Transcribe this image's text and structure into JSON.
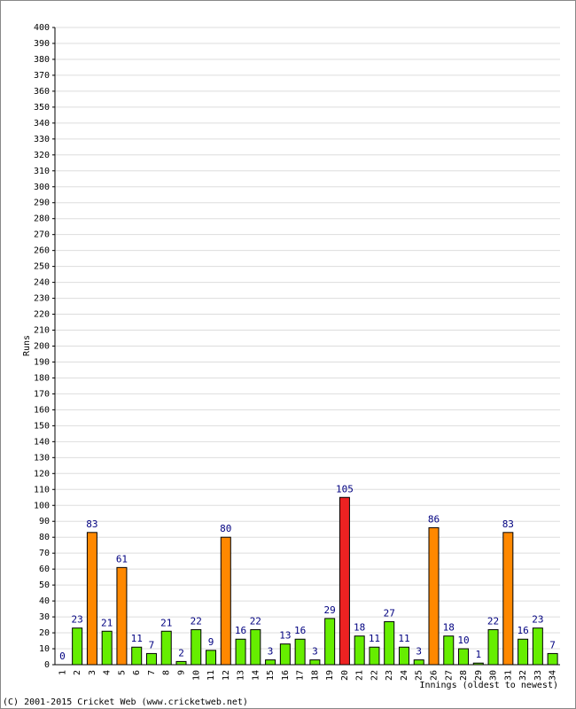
{
  "chart_data": {
    "type": "bar",
    "y_label": "Runs",
    "x_label": "Innings (oldest to newest)",
    "footer": "(C) 2001-2015 Cricket Web (www.cricketweb.net)",
    "categories": [
      "1",
      "2",
      "3",
      "4",
      "5",
      "6",
      "7",
      "8",
      "9",
      "10",
      "11",
      "12",
      "13",
      "14",
      "15",
      "16",
      "17",
      "18",
      "19",
      "20",
      "21",
      "22",
      "23",
      "24",
      "25",
      "26",
      "27",
      "28",
      "29",
      "30",
      "31",
      "32",
      "33",
      "34"
    ],
    "values": [
      0,
      23,
      83,
      21,
      61,
      11,
      7,
      21,
      2,
      22,
      9,
      80,
      16,
      22,
      3,
      13,
      16,
      3,
      29,
      105,
      18,
      11,
      27,
      11,
      3,
      86,
      18,
      10,
      1,
      22,
      83,
      16,
      23,
      7
    ],
    "colors": [
      "#66ee00",
      "#66ee00",
      "#ff8800",
      "#66ee00",
      "#ff8800",
      "#66ee00",
      "#66ee00",
      "#66ee00",
      "#66ee00",
      "#66ee00",
      "#66ee00",
      "#ff8800",
      "#66ee00",
      "#66ee00",
      "#66ee00",
      "#66ee00",
      "#66ee00",
      "#66ee00",
      "#66ee00",
      "#ee2222",
      "#66ee00",
      "#66ee00",
      "#66ee00",
      "#66ee00",
      "#66ee00",
      "#ff8800",
      "#66ee00",
      "#66ee00",
      "#66ee00",
      "#66ee00",
      "#ff8800",
      "#66ee00",
      "#66ee00",
      "#66ee00"
    ],
    "ylim": [
      0,
      400
    ],
    "yticks": [
      0,
      10,
      20,
      30,
      40,
      50,
      60,
      70,
      80,
      90,
      100,
      110,
      120,
      130,
      140,
      150,
      160,
      170,
      180,
      190,
      200,
      210,
      220,
      230,
      240,
      250,
      260,
      270,
      280,
      290,
      300,
      310,
      320,
      330,
      340,
      350,
      360,
      370,
      380,
      390,
      400
    ],
    "grid": true
  }
}
